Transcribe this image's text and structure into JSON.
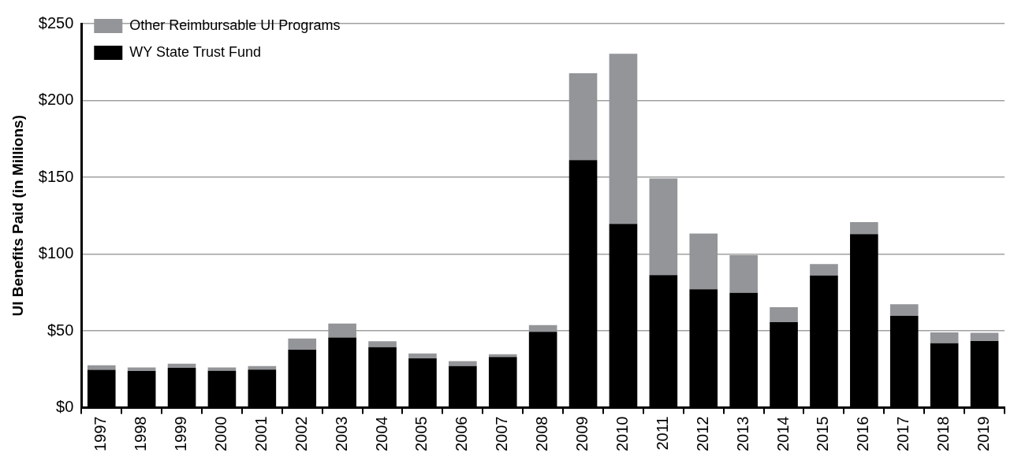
{
  "chart_data": {
    "type": "bar",
    "stacked": true,
    "ylabel": "UI Benefits Paid (in Millions)",
    "categories": [
      "1997",
      "1998",
      "1999",
      "2000",
      "2001",
      "2002",
      "2003",
      "2004",
      "2005",
      "2006",
      "2007",
      "2008",
      "2009",
      "2010",
      "2011",
      "2012",
      "2013",
      "2014",
      "2015",
      "2016",
      "2017",
      "2018",
      "2019"
    ],
    "series": [
      {
        "name": "WY State Trust Fund",
        "color": "#000000",
        "values": [
          24.6,
          23.9,
          25.9,
          24,
          24.8,
          37.7,
          45.7,
          39.3,
          32.1,
          27.1,
          33,
          49.4,
          161.2,
          119.6,
          86.3,
          77.1,
          74.8,
          55.6,
          86,
          112.9,
          59.8,
          41.9,
          43.3
        ]
      },
      {
        "name": "Other Reimbursable UI Programs",
        "color": "#939598",
        "values": [
          3,
          2.3,
          2.7,
          2.2,
          2.3,
          7.3,
          9.1,
          3.9,
          3.1,
          3.1,
          1.8,
          4.3,
          56.5,
          110.8,
          62.9,
          36.2,
          24.4,
          9.8,
          7.5,
          7.9,
          7.5,
          7.1,
          5.4
        ]
      }
    ],
    "ylim": [
      0,
      250
    ],
    "yticks": [
      {
        "value": 0,
        "label": "$0"
      },
      {
        "value": 50,
        "label": "$50"
      },
      {
        "value": 100,
        "label": "$100"
      },
      {
        "value": 150,
        "label": "$150"
      },
      {
        "value": 200,
        "label": "$200"
      },
      {
        "value": 250,
        "label": "$250"
      }
    ],
    "grid": "y",
    "legend": "top left"
  }
}
